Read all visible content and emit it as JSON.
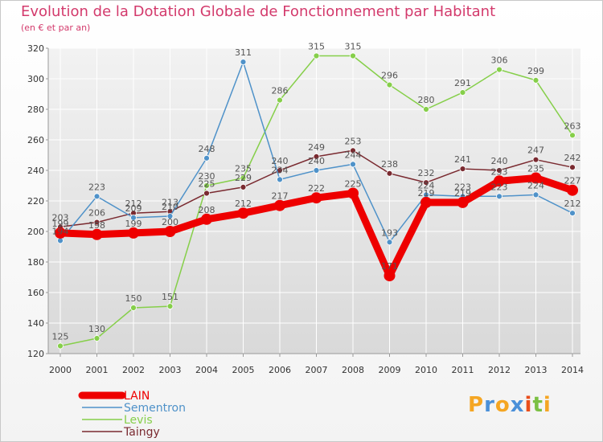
{
  "chart_data": {
    "type": "line",
    "title": "Evolution de la Dotation Globale de Fonctionnement par Habitant",
    "subtitle": "(en € et par an)",
    "xlabel": "",
    "ylabel": "",
    "categories": [
      "2000",
      "2001",
      "2002",
      "2003",
      "2004",
      "2005",
      "2006",
      "2007",
      "2008",
      "2009",
      "2010",
      "2011",
      "2012",
      "2013",
      "2014"
    ],
    "ylim": [
      120,
      320
    ],
    "yticks": [
      120,
      140,
      160,
      180,
      200,
      220,
      240,
      260,
      280,
      300,
      320
    ],
    "grid": true,
    "series": [
      {
        "name": "LAIN",
        "color": "#ee0000",
        "values": [
          199,
          198,
          199,
          200,
          208,
          212,
          217,
          222,
          225,
          171,
          219,
          219,
          233,
          235,
          227
        ]
      },
      {
        "name": "Sementron",
        "color": "#4f92c9",
        "values": [
          194,
          223,
          209,
          210,
          248,
          311,
          234,
          240,
          244,
          193,
          224,
          223,
          223,
          224,
          212
        ]
      },
      {
        "name": "Levis",
        "color": "#86cf4a",
        "values": [
          125,
          130,
          150,
          151,
          230,
          235,
          286,
          315,
          315,
          296,
          280,
          291,
          306,
          299,
          263
        ]
      },
      {
        "name": "Taingy",
        "color": "#7a2a30",
        "values": [
          203,
          206,
          212,
          213,
          225,
          229,
          240,
          249,
          253,
          238,
          232,
          241,
          240,
          247,
          242
        ]
      }
    ]
  },
  "logo": {
    "letters": [
      "P",
      "r",
      "o",
      "x",
      "i",
      "t",
      "i"
    ],
    "colors": [
      "#f5a623",
      "#4a90d9",
      "#f5a623",
      "#4a90d9",
      "#e94e1b",
      "#7bc043",
      "#f5a623"
    ]
  }
}
